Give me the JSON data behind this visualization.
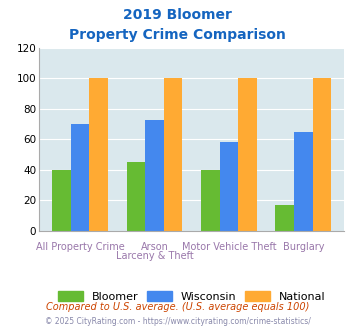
{
  "title_line1": "2019 Bloomer",
  "title_line2": "Property Crime Comparison",
  "title_color": "#1565C0",
  "series": {
    "Bloomer": [
      40,
      45,
      40,
      17
    ],
    "Wisconsin": [
      70,
      73,
      58,
      65
    ],
    "National": [
      100,
      100,
      100,
      100
    ]
  },
  "colors": {
    "Bloomer": "#66BB33",
    "Wisconsin": "#4488EE",
    "National": "#FFAA33"
  },
  "ylim": [
    0,
    120
  ],
  "yticks": [
    0,
    20,
    40,
    60,
    80,
    100,
    120
  ],
  "plot_bg_color": "#DAE8ED",
  "fig_bg_color": "#FFFFFF",
  "x_labels_top": [
    "",
    "Arson",
    "Motor Vehicle Theft",
    ""
  ],
  "x_labels_bot": [
    "All Property Crime",
    "Larceny & Theft",
    "",
    "Burglary"
  ],
  "xlabel_color": "#9977AA",
  "footnote1": "Compared to U.S. average. (U.S. average equals 100)",
  "footnote2": "© 2025 CityRating.com - https://www.cityrating.com/crime-statistics/",
  "footnote1_color": "#CC4400",
  "footnote2_color": "#8888AA",
  "legend_fontsize": 8,
  "tick_fontsize": 7.5,
  "xlabel_fontsize": 7.0,
  "title_fontsize": 10,
  "bar_width": 0.25
}
